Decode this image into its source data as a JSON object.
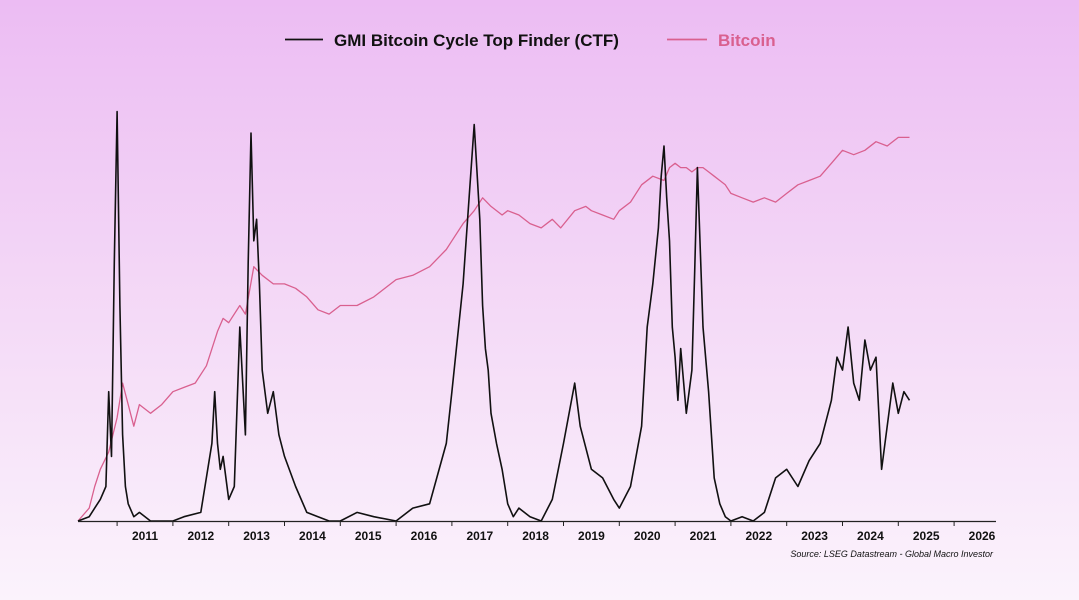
{
  "chart_data": {
    "type": "line",
    "title": "",
    "xlabel": "",
    "ylabel": "",
    "x_ticks": [
      "2011",
      "2012",
      "2013",
      "2014",
      "2015",
      "2016",
      "2017",
      "2018",
      "2019",
      "2020",
      "2021",
      "2022",
      "2023",
      "2024",
      "2025",
      "2026"
    ],
    "xlim": [
      2010.3,
      2026.75
    ],
    "ylim": [
      0,
      100
    ],
    "y_axis_visible": false,
    "grid": false,
    "legend_position": "top-center",
    "source": "Source: LSEG Datastream - Global Macro Investor",
    "colors": {
      "ctf": "#111111",
      "bitcoin": "#d9608f",
      "bitcoin_legend_text": "#d9608f",
      "background_top": "#ecbcf3",
      "background_bottom": "#fbf3fc"
    },
    "series": [
      {
        "name": "GMI Bitcoin Cycle Top Finder (CTF)",
        "color": "#111111",
        "x": [
          2010.3,
          2010.5,
          2010.6,
          2010.7,
          2010.8,
          2010.85,
          2010.9,
          2010.95,
          2011.0,
          2011.05,
          2011.1,
          2011.15,
          2011.2,
          2011.3,
          2011.4,
          2011.6,
          2011.8,
          2012.0,
          2012.2,
          2012.5,
          2012.7,
          2012.75,
          2012.8,
          2012.85,
          2012.9,
          2013.0,
          2013.1,
          2013.2,
          2013.3,
          2013.35,
          2013.4,
          2013.45,
          2013.5,
          2013.55,
          2013.6,
          2013.7,
          2013.8,
          2013.9,
          2014.0,
          2014.2,
          2014.4,
          2014.6,
          2014.8,
          2015.0,
          2015.3,
          2015.6,
          2016.0,
          2016.3,
          2016.6,
          2016.9,
          2017.0,
          2017.2,
          2017.4,
          2017.5,
          2017.55,
          2017.6,
          2017.65,
          2017.7,
          2017.8,
          2017.9,
          2018.0,
          2018.1,
          2018.2,
          2018.4,
          2018.6,
          2018.8,
          2019.0,
          2019.2,
          2019.3,
          2019.5,
          2019.7,
          2019.9,
          2020.0,
          2020.2,
          2020.4,
          2020.5,
          2020.6,
          2020.7,
          2020.75,
          2020.8,
          2020.85,
          2020.9,
          2020.95,
          2021.0,
          2021.05,
          2021.1,
          2021.2,
          2021.3,
          2021.35,
          2021.4,
          2021.5,
          2021.6,
          2021.7,
          2021.8,
          2021.9,
          2022.0,
          2022.2,
          2022.4,
          2022.6,
          2022.8,
          2023.0,
          2023.2,
          2023.4,
          2023.6,
          2023.8,
          2023.9,
          2024.0,
          2024.1,
          2024.2,
          2024.3,
          2024.4,
          2024.5,
          2024.6,
          2024.7,
          2024.8,
          2024.9,
          2025.0,
          2025.1,
          2025.2
        ],
        "values": [
          0,
          1,
          3,
          5,
          8,
          30,
          15,
          60,
          95,
          50,
          20,
          8,
          4,
          1,
          2,
          0,
          0,
          0,
          1,
          2,
          18,
          30,
          18,
          12,
          15,
          5,
          8,
          45,
          20,
          60,
          90,
          65,
          70,
          55,
          35,
          25,
          30,
          20,
          15,
          8,
          2,
          1,
          0,
          0,
          2,
          1,
          0,
          3,
          4,
          18,
          30,
          55,
          92,
          70,
          50,
          40,
          35,
          25,
          18,
          12,
          4,
          1,
          3,
          1,
          0,
          5,
          18,
          32,
          22,
          12,
          10,
          5,
          3,
          8,
          22,
          45,
          55,
          68,
          80,
          87,
          75,
          65,
          45,
          38,
          28,
          40,
          25,
          35,
          58,
          82,
          45,
          30,
          10,
          4,
          1,
          0,
          1,
          0,
          2,
          10,
          12,
          8,
          14,
          18,
          28,
          38,
          35,
          45,
          32,
          28,
          42,
          35,
          38,
          12,
          22,
          32,
          25,
          30,
          28
        ]
      },
      {
        "name": "Bitcoin",
        "color": "#d9608f",
        "x": [
          2010.3,
          2010.5,
          2010.6,
          2010.7,
          2010.85,
          2011.0,
          2011.1,
          2011.2,
          2011.3,
          2011.4,
          2011.6,
          2011.8,
          2012.0,
          2012.2,
          2012.4,
          2012.6,
          2012.8,
          2012.9,
          2013.0,
          2013.2,
          2013.3,
          2013.45,
          2013.6,
          2013.8,
          2014.0,
          2014.2,
          2014.4,
          2014.6,
          2014.8,
          2015.0,
          2015.3,
          2015.6,
          2016.0,
          2016.3,
          2016.6,
          2016.9,
          2017.0,
          2017.2,
          2017.4,
          2017.55,
          2017.7,
          2017.9,
          2018.0,
          2018.2,
          2018.4,
          2018.6,
          2018.8,
          2018.95,
          2019.2,
          2019.4,
          2019.5,
          2019.7,
          2019.9,
          2020.0,
          2020.2,
          2020.4,
          2020.6,
          2020.8,
          2020.9,
          2021.0,
          2021.1,
          2021.2,
          2021.3,
          2021.4,
          2021.5,
          2021.6,
          2021.7,
          2021.8,
          2021.9,
          2022.0,
          2022.2,
          2022.4,
          2022.6,
          2022.8,
          2023.0,
          2023.2,
          2023.4,
          2023.6,
          2023.8,
          2024.0,
          2024.2,
          2024.4,
          2024.6,
          2024.8,
          2025.0,
          2025.2
        ],
        "values": [
          0,
          3,
          8,
          12,
          16,
          24,
          32,
          27,
          22,
          27,
          25,
          27,
          30,
          31,
          32,
          36,
          44,
          47,
          46,
          50,
          48,
          59,
          57,
          55,
          55,
          54,
          52,
          49,
          48,
          50,
          50,
          52,
          56,
          57,
          59,
          63,
          65,
          69,
          72,
          75,
          73,
          71,
          72,
          71,
          69,
          68,
          70,
          68,
          72,
          73,
          72,
          71,
          70,
          72,
          74,
          78,
          80,
          79,
          82,
          83,
          82,
          82,
          81,
          82,
          82,
          81,
          80,
          79,
          78,
          76,
          75,
          74,
          75,
          74,
          76,
          78,
          79,
          80,
          83,
          86,
          85,
          86,
          88,
          87,
          89,
          89
        ]
      }
    ]
  }
}
